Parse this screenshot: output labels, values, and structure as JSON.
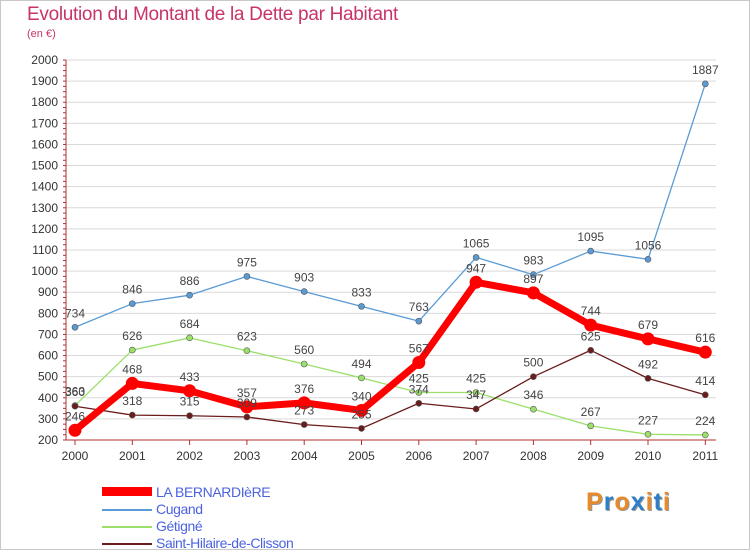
{
  "title": "Evolution du Montant de la Dette par Habitant",
  "unit": "(en €)",
  "brand": {
    "text": "Proxiti",
    "letters": [
      {
        "ch": "P",
        "color": "#e88a2a"
      },
      {
        "ch": "r",
        "color": "#2f7fc8"
      },
      {
        "ch": "o",
        "color": "#e88a2a"
      },
      {
        "ch": "x",
        "color": "#2f7fc8"
      },
      {
        "ch": "i",
        "color": "#e88a2a"
      },
      {
        "ch": "t",
        "color": "#2f7fc8"
      },
      {
        "ch": "i",
        "color": "#e88a2a"
      }
    ]
  },
  "colors": {
    "title": "#c8346a",
    "axis": "#b03030",
    "grid": "#d9d9d9",
    "tick_text": "#333333",
    "value_text": "#444444",
    "legend_text": "#4b63e0"
  },
  "chart_data": {
    "type": "line",
    "title": "Evolution du Montant de la Dette par Habitant",
    "ylabel": "(en €)",
    "xlabel": "",
    "categories": [
      "2000",
      "2001",
      "2002",
      "2003",
      "2004",
      "2005",
      "2006",
      "2007",
      "2008",
      "2009",
      "2010",
      "2011"
    ],
    "ylim": [
      200,
      2000
    ],
    "yticks": [
      "200",
      "300",
      "400",
      "500",
      "600",
      "700",
      "800",
      "900",
      "1000",
      "1100",
      "1200",
      "1300",
      "1400",
      "1500",
      "1600",
      "1700",
      "1800",
      "1900",
      "2000"
    ],
    "grid": "horizontal",
    "legend_position": "bottom-left",
    "series": [
      {
        "name": "Cugand",
        "color": "#5b9bd5",
        "values": [
          734,
          846,
          886,
          975,
          903,
          833,
          763,
          1065,
          983,
          1095,
          1056,
          1887
        ],
        "labels": [
          "734",
          "846",
          "886",
          "975",
          "903",
          "833",
          "763",
          "1065",
          "983",
          "1095",
          "1056",
          "1887"
        ]
      },
      {
        "name": "Gétigné",
        "color": "#9be06a",
        "values": [
          363,
          626,
          684,
          623,
          560,
          494,
          425,
          425,
          346,
          267,
          227,
          224
        ],
        "labels": [
          "363",
          "626",
          "684",
          "623",
          "560",
          "494",
          "425",
          "425",
          "346",
          "267",
          "227",
          "224"
        ]
      },
      {
        "name": "Saint-Hilaire-de-Clisson",
        "color": "#6b1c1c",
        "values": [
          360,
          318,
          315,
          309,
          273,
          255,
          374,
          347,
          500,
          625,
          492,
          414
        ],
        "labels": [
          "360",
          "318",
          "315",
          "309",
          "273",
          "255",
          "374",
          "347",
          "500",
          "625",
          "492",
          "414"
        ]
      },
      {
        "name": "LA BERNARDIèRE",
        "color": "#ff0000",
        "values": [
          246,
          468,
          433,
          357,
          376,
          340,
          567,
          947,
          897,
          744,
          679,
          616
        ],
        "labels": [
          "246",
          "468",
          "433",
          "357",
          "376",
          "340",
          "567",
          "947",
          "897",
          "744",
          "679",
          "616"
        ]
      }
    ]
  },
  "legend": [
    {
      "label": "LA BERNARDIèRE",
      "color": "#ff0000"
    },
    {
      "label": "Cugand",
      "color": "#5b9bd5"
    },
    {
      "label": "Gétigné",
      "color": "#9be06a"
    },
    {
      "label": "Saint-Hilaire-de-Clisson",
      "color": "#6b1c1c"
    }
  ]
}
